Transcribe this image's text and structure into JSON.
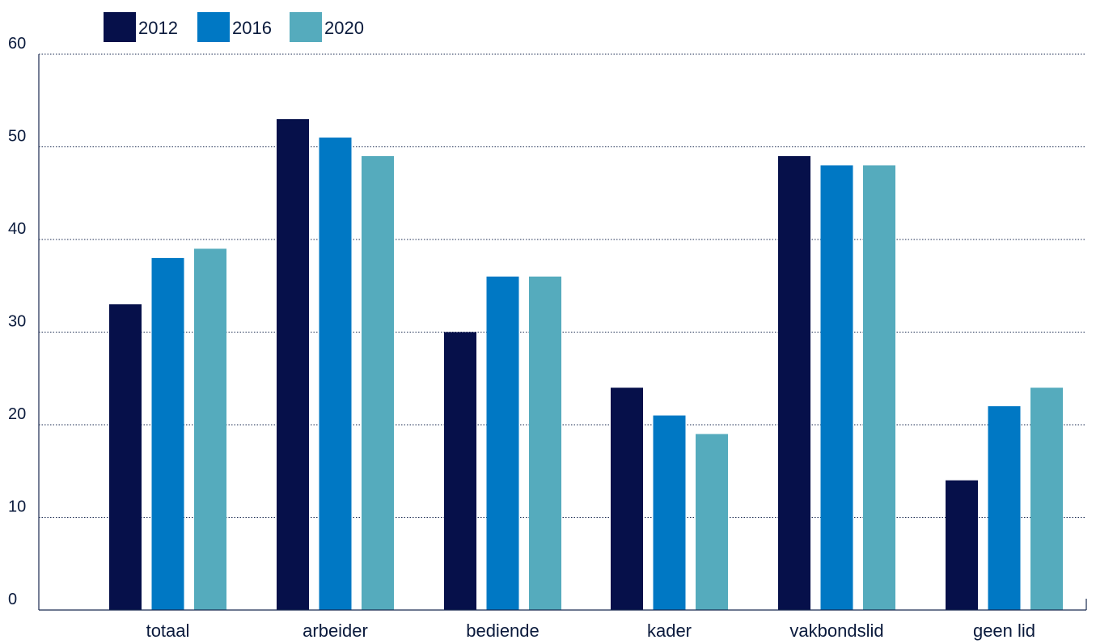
{
  "chart_data": {
    "type": "bar",
    "categories": [
      "totaal",
      "arbeider",
      "bediende",
      "kader",
      "vakbondslid",
      "geen lid"
    ],
    "series": [
      {
        "name": "2012",
        "color": "#06104a",
        "values": [
          33,
          53,
          30,
          24,
          49,
          14
        ]
      },
      {
        "name": "2016",
        "color": "#0078c4",
        "values": [
          38,
          51,
          36,
          21,
          48,
          22
        ]
      },
      {
        "name": "2020",
        "color": "#55abbd",
        "values": [
          39,
          49,
          36,
          19,
          48,
          24
        ]
      }
    ],
    "title": "",
    "xlabel": "",
    "ylabel": "",
    "ylim": [
      0,
      60
    ],
    "yticks": [
      0,
      10,
      20,
      30,
      40,
      50,
      60
    ],
    "grid": "horizontal dotted",
    "legend_position": "top-left"
  }
}
